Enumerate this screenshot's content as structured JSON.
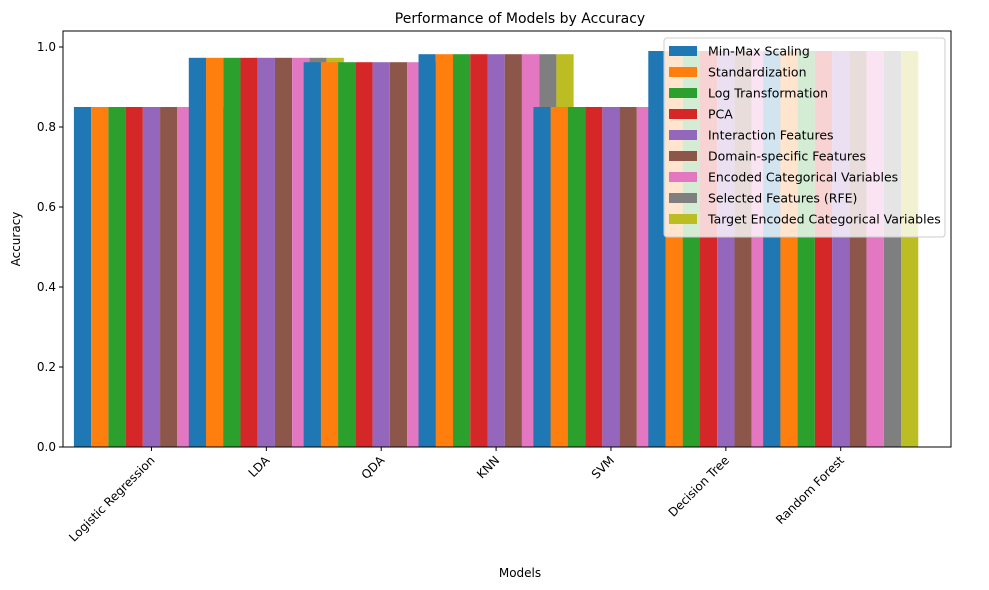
{
  "chart_data": {
    "type": "bar",
    "title": "Performance of Models by Accuracy",
    "xlabel": "Models",
    "ylabel": "Accuracy",
    "ylim": [
      0,
      1.04
    ],
    "yticks": [
      "0.0",
      "0.2",
      "0.4",
      "0.6",
      "0.8",
      "1.0"
    ],
    "ytick_values": [
      0.0,
      0.2,
      0.4,
      0.6,
      0.8,
      1.0
    ],
    "categories": [
      "Logistic Regression",
      "LDA",
      "QDA",
      "KNN",
      "SVM",
      "Decision Tree",
      "Random Forest"
    ],
    "legend_position": "top-right",
    "series": [
      {
        "name": "Min-Max Scaling",
        "color": "#1f77b4",
        "values": [
          0.85,
          0.973,
          0.962,
          0.982,
          0.85,
          0.99,
          0.99
        ]
      },
      {
        "name": "Standardization",
        "color": "#ff7f0e",
        "values": [
          0.85,
          0.973,
          0.962,
          0.982,
          0.85,
          0.99,
          0.99
        ]
      },
      {
        "name": "Log Transformation",
        "color": "#2ca02c",
        "values": [
          0.85,
          0.973,
          0.962,
          0.982,
          0.85,
          0.99,
          0.99
        ]
      },
      {
        "name": "PCA",
        "color": "#d62728",
        "values": [
          0.85,
          0.973,
          0.962,
          0.982,
          0.85,
          0.99,
          0.99
        ]
      },
      {
        "name": "Interaction Features",
        "color": "#9467bd",
        "values": [
          0.85,
          0.973,
          0.962,
          0.982,
          0.85,
          0.99,
          0.99
        ]
      },
      {
        "name": "Domain-specific Features",
        "color": "#8c564b",
        "values": [
          0.85,
          0.973,
          0.962,
          0.982,
          0.85,
          0.99,
          0.99
        ]
      },
      {
        "name": "Encoded Categorical Variables",
        "color": "#e377c2",
        "values": [
          0.85,
          0.973,
          0.962,
          0.982,
          0.85,
          0.99,
          0.99
        ]
      },
      {
        "name": "Selected Features (RFE)",
        "color": "#7f7f7f",
        "values": [
          0.85,
          0.973,
          0.962,
          0.982,
          0.85,
          0.99,
          0.99
        ]
      },
      {
        "name": "Target Encoded Categorical Variables",
        "color": "#bcbd22",
        "values": [
          0.85,
          0.973,
          0.962,
          0.982,
          0.85,
          0.99,
          0.99
        ]
      }
    ]
  }
}
